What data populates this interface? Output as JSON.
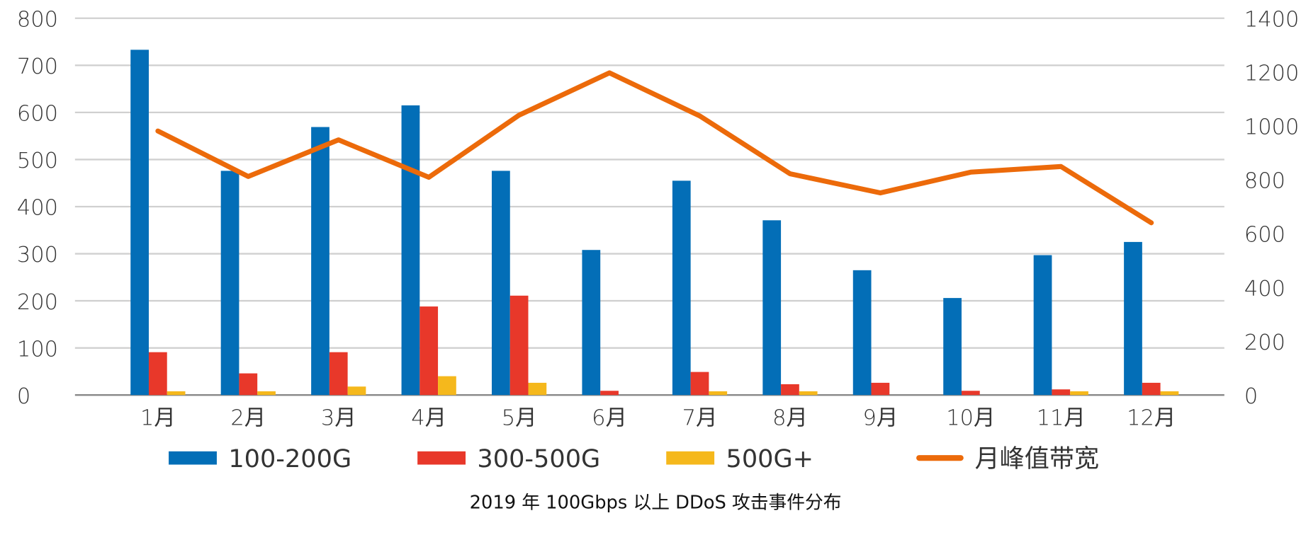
{
  "chart_data": {
    "type": "bar",
    "title": "2019 年 100Gbps 以上 DDoS 攻击事件分布",
    "categories": [
      "1月",
      "2月",
      "3月",
      "4月",
      "5月",
      "6月",
      "7月",
      "8月",
      "9月",
      "10月",
      "11月",
      "12月"
    ],
    "series": [
      {
        "name": "100-200G",
        "axis": "left",
        "type": "bar",
        "color": "#036eb7",
        "values": [
          733,
          476,
          569,
          615,
          476,
          308,
          455,
          371,
          265,
          206,
          297,
          325
        ]
      },
      {
        "name": "300-500G",
        "axis": "left",
        "type": "bar",
        "color": "#e8382a",
        "values": [
          91,
          46,
          91,
          188,
          211,
          9,
          49,
          23,
          26,
          9,
          12,
          26
        ]
      },
      {
        "name": "500G+",
        "axis": "left",
        "type": "bar",
        "color": "#f5b81c",
        "values": [
          8,
          8,
          18,
          40,
          26,
          0,
          8,
          8,
          0,
          0,
          8,
          8
        ]
      },
      {
        "name": "月峰值带宽",
        "axis": "right",
        "type": "line",
        "color": "#ec6a0a",
        "values": [
          981,
          812,
          948,
          809,
          1040,
          1197,
          1037,
          822,
          751,
          828,
          849,
          640
        ]
      }
    ],
    "left_axis": {
      "ylim": [
        0,
        800
      ],
      "ticks": [
        "0",
        "100",
        "200",
        "300",
        "400",
        "500",
        "600",
        "700",
        "800"
      ]
    },
    "right_axis": {
      "ylim": [
        0,
        1400
      ],
      "ticks": [
        "0",
        "200",
        "400",
        "600",
        "800",
        "1000",
        "1200",
        "1400"
      ]
    },
    "grid": true,
    "legend_position": "bottom"
  }
}
